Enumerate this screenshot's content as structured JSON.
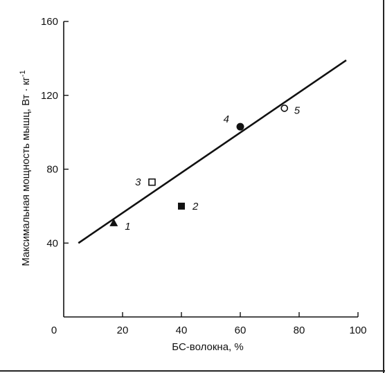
{
  "chart_data": {
    "type": "scatter",
    "xlabel": "БС-волокна, %",
    "ylabel": "Максимальная мощность мышц, Вт · кг",
    "ylabel_sup": "-1",
    "xlim": [
      0,
      100
    ],
    "ylim": [
      0,
      160
    ],
    "x_ticks": [
      {
        "value": 0,
        "label": "0"
      },
      {
        "value": 20,
        "label": "20"
      },
      {
        "value": 40,
        "label": "40"
      },
      {
        "value": 60,
        "label": "60"
      },
      {
        "value": 80,
        "label": "80"
      },
      {
        "value": 100,
        "label": "100"
      }
    ],
    "y_ticks": [
      {
        "value": 40,
        "label": "40"
      },
      {
        "value": 80,
        "label": "80"
      },
      {
        "value": 120,
        "label": "120"
      },
      {
        "value": 160,
        "label": "160"
      }
    ],
    "points": [
      {
        "label": "1",
        "marker": "triangle-filled",
        "x": 17,
        "y": 51
      },
      {
        "label": "2",
        "marker": "square-filled",
        "x": 40,
        "y": 60
      },
      {
        "label": "3",
        "marker": "square-open",
        "x": 30,
        "y": 73
      },
      {
        "label": "4",
        "marker": "circle-filled",
        "x": 60,
        "y": 103
      },
      {
        "label": "5",
        "marker": "circle-open",
        "x": 75,
        "y": 113
      }
    ],
    "regression_line": {
      "x": [
        5,
        96
      ],
      "y": [
        40,
        139
      ]
    },
    "grid": false,
    "legend": "none"
  }
}
